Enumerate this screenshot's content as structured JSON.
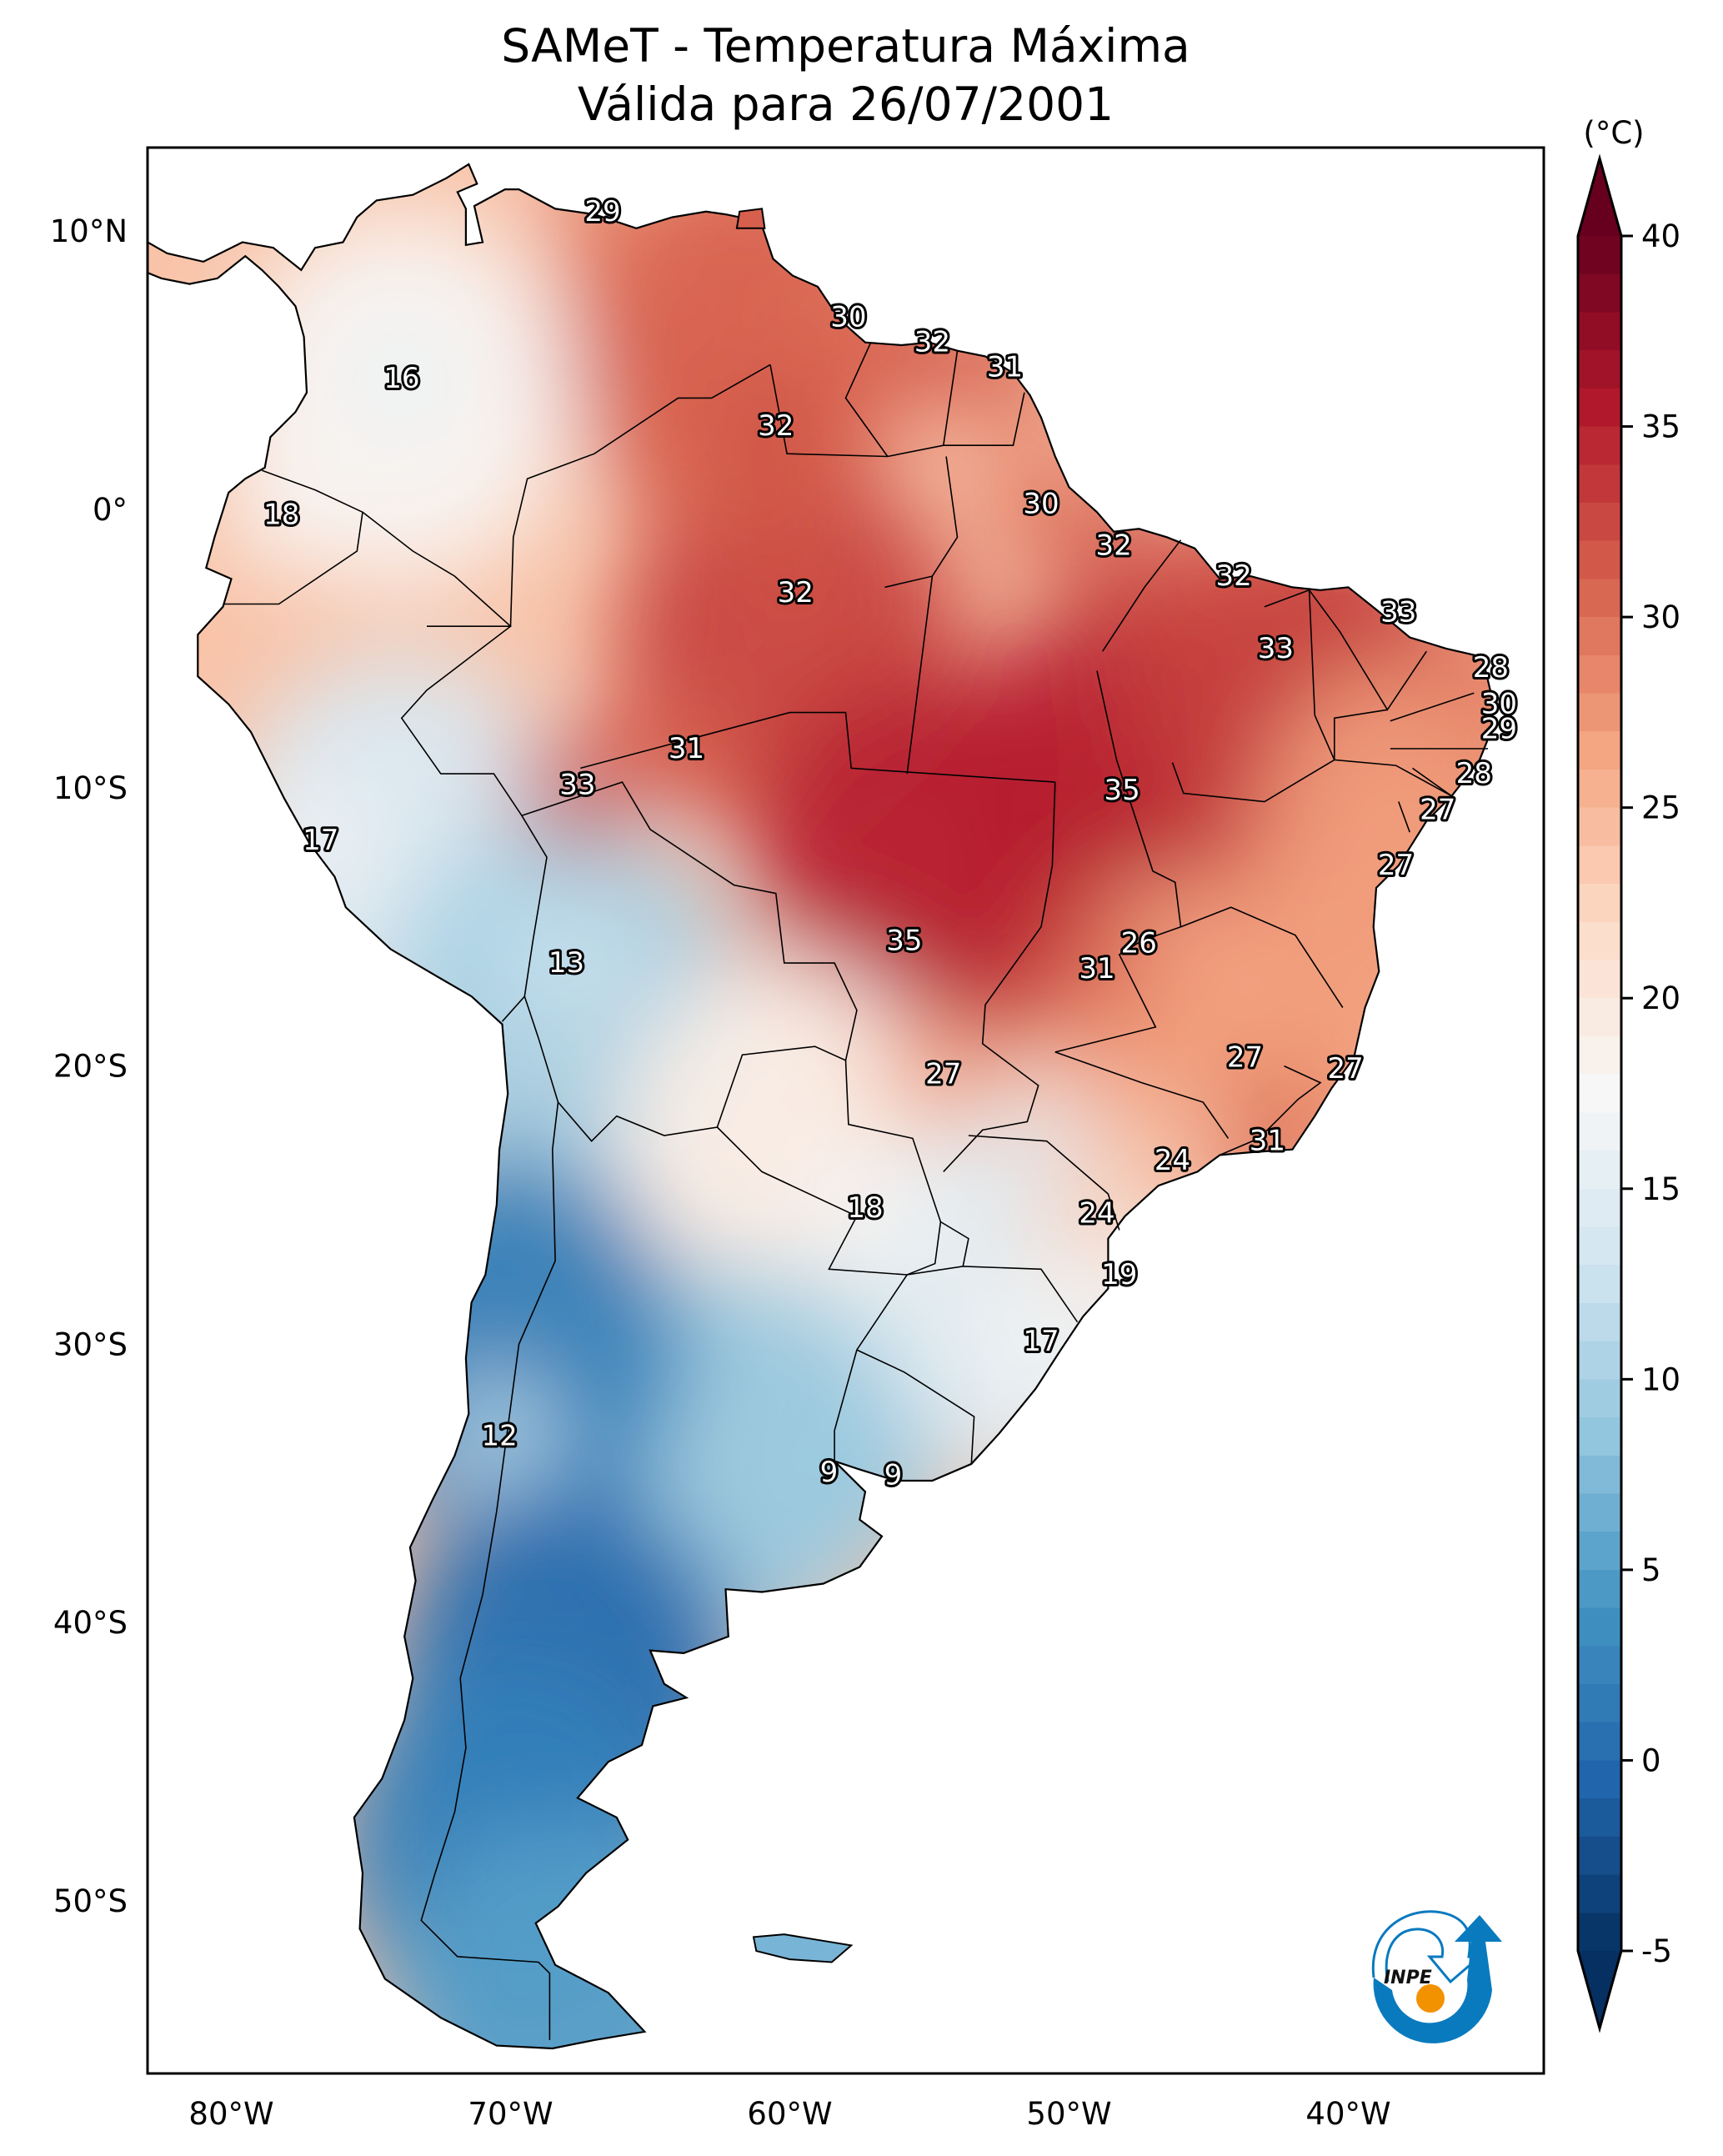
{
  "title": {
    "line1": "SAMeT - Temperatura Máxima",
    "line2": "Válida para 26/07/2001"
  },
  "colorbar": {
    "unit_label": "(°C)",
    "ticks": [
      "-5",
      "0",
      "5",
      "10",
      "15",
      "20",
      "25",
      "30",
      "35",
      "40"
    ],
    "tick_values": [
      -5,
      0,
      5,
      10,
      15,
      20,
      25,
      30,
      35,
      40
    ],
    "min": -5,
    "max": 40,
    "extend": "both",
    "colormap": "RdBu_r",
    "colormap_stops": [
      "#053061",
      "#2166ac",
      "#4393c3",
      "#92c5de",
      "#d1e5f0",
      "#f7f7f7",
      "#fddbc7",
      "#f4a582",
      "#d6604d",
      "#b2182b",
      "#67001f"
    ]
  },
  "logo": {
    "text": "INPE",
    "arc_color": "#0a7abf",
    "dot_color": "#f39200"
  },
  "chart_data": {
    "type": "heatmap",
    "title": "SAMeT - Temperatura Máxima — Válida para 26/07/2001",
    "xlabel": "",
    "ylabel": "",
    "xlim": [
      -83,
      -33
    ],
    "ylim": [
      -56.2,
      13
    ],
    "x_ticks": [
      -80,
      -70,
      -60,
      -50,
      -40
    ],
    "x_tick_labels": [
      "80°W",
      "70°W",
      "60°W",
      "50°W",
      "40°W"
    ],
    "y_ticks": [
      10,
      0,
      -10,
      -20,
      -30,
      -40,
      -50
    ],
    "y_tick_labels": [
      "10°N",
      "0°",
      "10°S",
      "20°S",
      "30°S",
      "40°S",
      "50°S"
    ],
    "grid": false,
    "value_range": [
      -5,
      40
    ],
    "units": "°C",
    "legend": "colorbar-right",
    "contour_labels": [
      {
        "lon": -66.7,
        "lat": 10.7,
        "value": 29
      },
      {
        "lon": -73.9,
        "lat": 4.7,
        "value": 16
      },
      {
        "lon": -57.9,
        "lat": 6.9,
        "value": 30
      },
      {
        "lon": -54.9,
        "lat": 6.0,
        "value": 32
      },
      {
        "lon": -52.3,
        "lat": 5.1,
        "value": 31
      },
      {
        "lon": -60.5,
        "lat": 3.0,
        "value": 32
      },
      {
        "lon": -51.0,
        "lat": 0.2,
        "value": 30
      },
      {
        "lon": -78.2,
        "lat": -0.2,
        "value": 18
      },
      {
        "lon": -48.4,
        "lat": -1.3,
        "value": 32
      },
      {
        "lon": -59.8,
        "lat": -3.0,
        "value": 32
      },
      {
        "lon": -44.1,
        "lat": -2.4,
        "value": 32
      },
      {
        "lon": -38.2,
        "lat": -3.7,
        "value": 33
      },
      {
        "lon": -42.6,
        "lat": -5.0,
        "value": 33
      },
      {
        "lon": -34.9,
        "lat": -5.7,
        "value": 28
      },
      {
        "lon": -34.6,
        "lat": -7.0,
        "value": 30
      },
      {
        "lon": -34.6,
        "lat": -7.9,
        "value": 29
      },
      {
        "lon": -63.7,
        "lat": -8.6,
        "value": 31
      },
      {
        "lon": -67.6,
        "lat": -9.9,
        "value": 33
      },
      {
        "lon": -48.1,
        "lat": -10.1,
        "value": 35
      },
      {
        "lon": -35.5,
        "lat": -9.5,
        "value": 28
      },
      {
        "lon": -36.8,
        "lat": -10.8,
        "value": 27
      },
      {
        "lon": -76.8,
        "lat": -11.9,
        "value": 17
      },
      {
        "lon": -38.3,
        "lat": -12.8,
        "value": 27
      },
      {
        "lon": -68.0,
        "lat": -16.3,
        "value": 13
      },
      {
        "lon": -55.9,
        "lat": -15.5,
        "value": 35
      },
      {
        "lon": -47.5,
        "lat": -15.6,
        "value": 26
      },
      {
        "lon": -49.0,
        "lat": -16.5,
        "value": 31
      },
      {
        "lon": -43.7,
        "lat": -19.7,
        "value": 27
      },
      {
        "lon": -40.1,
        "lat": -20.1,
        "value": 27
      },
      {
        "lon": -54.5,
        "lat": -20.3,
        "value": 27
      },
      {
        "lon": -42.9,
        "lat": -22.7,
        "value": 31
      },
      {
        "lon": -46.3,
        "lat": -23.4,
        "value": 24
      },
      {
        "lon": -57.3,
        "lat": -25.1,
        "value": 18
      },
      {
        "lon": -49.0,
        "lat": -25.3,
        "value": 24
      },
      {
        "lon": -48.2,
        "lat": -27.5,
        "value": 19
      },
      {
        "lon": -51.0,
        "lat": -29.9,
        "value": 17
      },
      {
        "lon": -70.4,
        "lat": -33.3,
        "value": 12
      },
      {
        "lon": -58.6,
        "lat": -34.6,
        "value": 9
      },
      {
        "lon": -56.3,
        "lat": -34.7,
        "value": 9
      }
    ],
    "field_regions": [
      {
        "name": "amazon-central",
        "lon": -60,
        "lat": -5,
        "value": 33
      },
      {
        "name": "brazil-central-west",
        "lon": -55,
        "lat": -13,
        "value": 35
      },
      {
        "name": "tocantins",
        "lon": -48,
        "lat": -10,
        "value": 35
      },
      {
        "name": "northeast-interior",
        "lon": -42,
        "lat": -7,
        "value": 33
      },
      {
        "name": "northeast-coast",
        "lon": -37,
        "lat": -12,
        "value": 27
      },
      {
        "name": "southeast",
        "lon": -44,
        "lat": -20,
        "value": 27
      },
      {
        "name": "venezuela-guianas",
        "lon": -62,
        "lat": 6,
        "value": 31
      },
      {
        "name": "andes-north",
        "lon": -74,
        "lat": 4,
        "value": 18
      },
      {
        "name": "andes-peru",
        "lon": -74,
        "lat": -12,
        "value": 14
      },
      {
        "name": "altiplano",
        "lon": -68,
        "lat": -18,
        "value": 10
      },
      {
        "name": "chaco-paraguay",
        "lon": -60,
        "lat": -23,
        "value": 19
      },
      {
        "name": "south-brazil",
        "lon": -52,
        "lat": -28,
        "value": 15
      },
      {
        "name": "pampas",
        "lon": -62,
        "lat": -34,
        "value": 9
      },
      {
        "name": "andes-central",
        "lon": -70,
        "lat": -30,
        "value": 2
      },
      {
        "name": "patagonia-north",
        "lon": -68,
        "lat": -42,
        "value": 0
      },
      {
        "name": "patagonia-south",
        "lon": -70,
        "lat": -48,
        "value": 2
      },
      {
        "name": "tierra-del-fuego",
        "lon": -68,
        "lat": -54,
        "value": 5
      }
    ]
  }
}
